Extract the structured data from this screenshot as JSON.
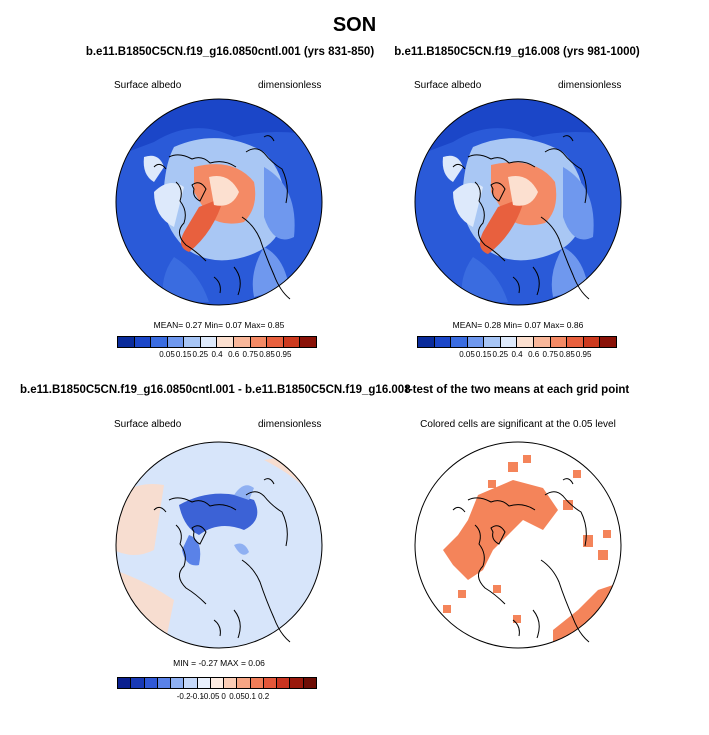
{
  "title": "SON",
  "panels": [
    {
      "title": "b.e11.B1850C5CN.f19_g16.0850cntl.001 (yrs 831-850)",
      "left_label": "Surface albedo",
      "right_label": "dimensionless",
      "stats": "MEAN=  0.27  Min=  0.07  Max=  0.85",
      "colorbar": {
        "colors": [
          "#0a2b9b",
          "#1b46c8",
          "#3a6ce0",
          "#6f98ee",
          "#a8c6f6",
          "#dde9fb",
          "#fce0d0",
          "#f9b79a",
          "#f48a65",
          "#e8603e",
          "#cc3a1f",
          "#8a1208"
        ],
        "labels": [
          "0.05",
          "0.15",
          "0.25",
          "0.4",
          "0.6",
          "0.75",
          "0.85",
          "0.95"
        ]
      }
    },
    {
      "title": "b.e11.B1850C5CN.f19_g16.008 (yrs 981-1000)",
      "left_label": "Surface albedo",
      "right_label": "dimensionless",
      "stats": "MEAN=  0.28  Min=  0.07  Max=  0.86",
      "colorbar": {
        "colors": [
          "#0a2b9b",
          "#1b46c8",
          "#3a6ce0",
          "#6f98ee",
          "#a8c6f6",
          "#dde9fb",
          "#fce0d0",
          "#f9b79a",
          "#f48a65",
          "#e8603e",
          "#cc3a1f",
          "#8a1208"
        ],
        "labels": [
          "0.05",
          "0.15",
          "0.25",
          "0.4",
          "0.6",
          "0.75",
          "0.85",
          "0.95"
        ]
      }
    },
    {
      "title": "b.e11.B1850C5CN.f19_g16.0850cntl.001 - b.e11.B1850C5CN.f19_g16.008",
      "left_label": "Surface albedo",
      "right_label": "dimensionless",
      "stats": "MIN =  -0.27  MAX =  0.06",
      "colorbar": {
        "colors": [
          "#0a1f8f",
          "#1839b5",
          "#3058d6",
          "#5a82e8",
          "#8fb0f2",
          "#c5d8f9",
          "#e9f0fc",
          "#fdece2",
          "#fbcdb6",
          "#f6a584",
          "#f07d58",
          "#e3573a",
          "#c93420",
          "#9a190c",
          "#6e0d05"
        ],
        "labels": [
          "-0.2",
          "-0.1",
          "-0.05",
          "0",
          "0.05",
          "0.1",
          "0.2"
        ]
      }
    },
    {
      "title": "t-test of the two means at each grid point",
      "subtitle": "Colored cells are significant at the 0.05 level"
    }
  ],
  "colors": {
    "ocean_blue": "#2a5ad8",
    "land_light": "#a9c7f4",
    "ice_orange": "#f07a4c",
    "ice_core": "#e8552d",
    "diff_bg": "#d7e5fa",
    "diff_neg": "#3c62d6",
    "diff_pos": "#f7ddd0",
    "signif": "#f4845a"
  }
}
